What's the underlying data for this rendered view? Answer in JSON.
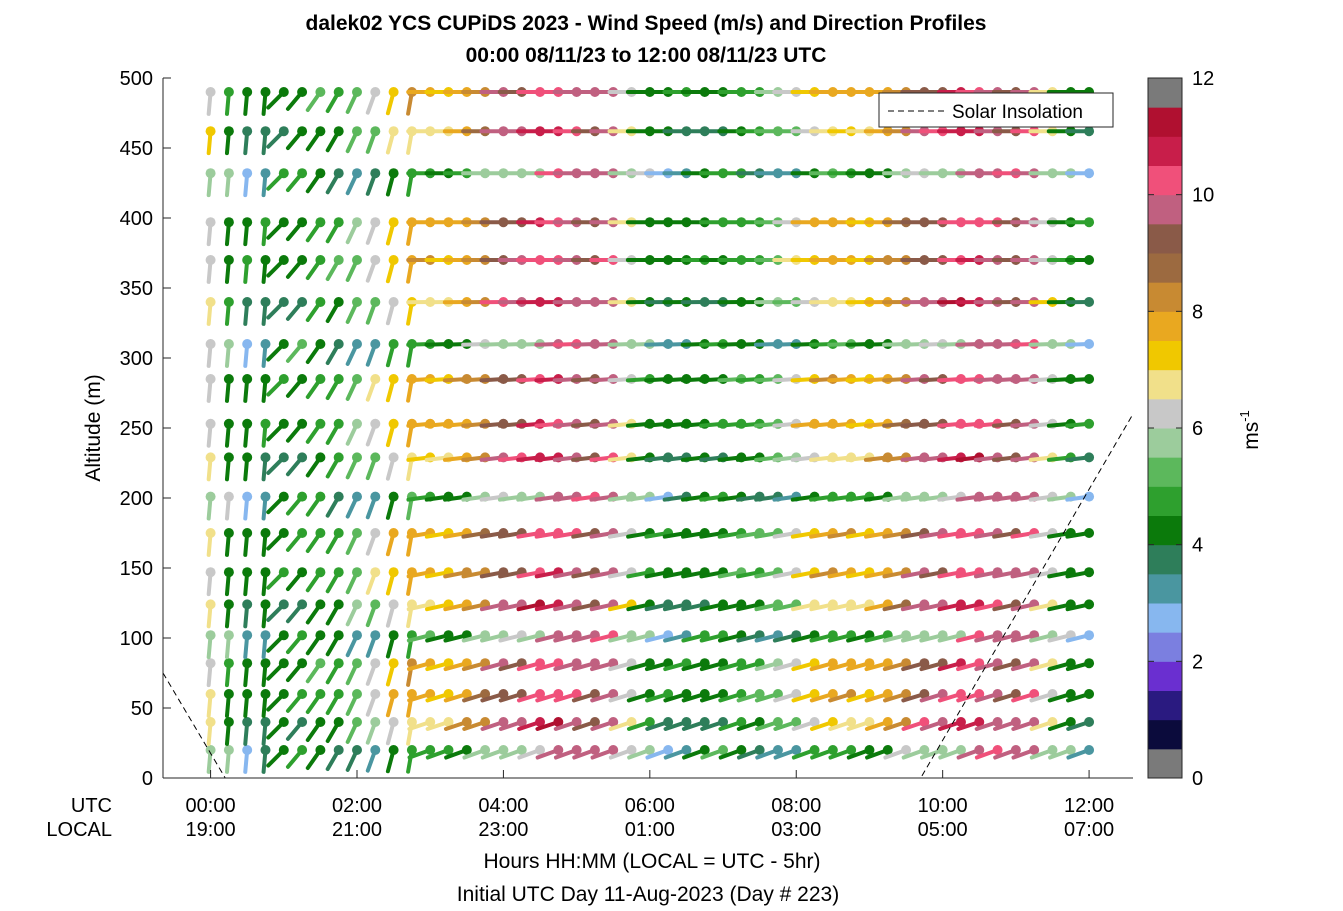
{
  "chart_data": {
    "type": "wind-barb-profile",
    "title_line1": "dalek02 YCS CUPiDS 2023 - Wind Speed (m/s) and Direction Profiles",
    "title_line2": "00:00 08/11/23 to 12:00 08/11/23  UTC",
    "ylabel": "Altitude (m)",
    "xlabel": "Hours HH:MM  (LOCAL = UTC - 5hr)",
    "subtitle": "Initial UTC Day 11-Aug-2023 (Day # 223)",
    "row_label_utc": "UTC",
    "row_label_local": "LOCAL",
    "x_ticks_utc": [
      "00:00",
      "02:00",
      "04:00",
      "06:00",
      "08:00",
      "10:00",
      "12:00"
    ],
    "x_ticks_local": [
      "19:00",
      "21:00",
      "23:00",
      "01:00",
      "03:00",
      "05:00",
      "07:00"
    ],
    "x_tick_hours": [
      0,
      2,
      4,
      6,
      8,
      10,
      12
    ],
    "xlim_hours": [
      -0.65,
      12.6
    ],
    "y_ticks": [
      "0",
      "50",
      "100",
      "150",
      "200",
      "250",
      "300",
      "350",
      "400",
      "450",
      "500"
    ],
    "ylim": [
      0,
      500
    ],
    "colorbar": {
      "label": "ms",
      "label_exponent": "-1",
      "ticks": [
        "0",
        "2",
        "4",
        "6",
        "8",
        "10",
        "12"
      ],
      "range": [
        0,
        12
      ],
      "colors": [
        "#7a7a7a",
        "#0b0b3c",
        "#2a1a80",
        "#6a2fd0",
        "#7b7fe0",
        "#87b7ef",
        "#4a96a0",
        "#2e7e5a",
        "#0b7a0b",
        "#2ea02e",
        "#5cb85c",
        "#9ccc9c",
        "#c8c8c8",
        "#f1e08a",
        "#f0c800",
        "#e9a820",
        "#c88a32",
        "#9c6a40",
        "#8a5a48",
        "#c06080",
        "#f0507a",
        "#c81e4a",
        "#b01030",
        "#7a7a7a"
      ]
    },
    "legend": {
      "entry": "Solar Insolation",
      "placement": "top-right"
    },
    "altitudes_m": [
      20,
      40,
      60,
      82,
      102,
      124,
      147,
      175,
      201,
      229,
      253,
      285,
      310,
      340,
      370,
      397,
      432,
      462,
      490
    ],
    "time_step_hours": 0.25,
    "time_start_hours": 0,
    "profiles_speed_ms": [
      [
        5.5,
        5.5,
        2.5,
        3,
        4,
        4.5,
        4,
        3.5,
        3,
        3,
        4,
        4.5,
        4.5,
        4,
        4,
        5.5,
        5.5,
        5.5,
        5.5,
        9.5,
        9.5,
        9.5,
        9.5
      ],
      [
        6.5,
        4,
        3.5,
        3.5,
        3.5,
        3.5,
        4,
        4,
        5,
        5,
        6,
        6.5,
        6.5,
        6.5,
        7.5,
        8,
        9.5,
        9.5,
        10.5,
        10.5,
        9.5,
        9,
        9.5
      ],
      [
        6,
        4,
        4,
        4,
        4,
        4,
        4.5,
        4.5,
        5,
        6,
        7,
        7.5,
        7.5,
        7,
        7.5,
        8,
        9,
        9,
        10,
        10,
        9.5,
        9,
        9.5
      ],
      [
        6,
        4,
        4,
        4,
        4,
        4,
        4.5,
        4.5,
        5,
        6,
        7,
        7.5,
        7.5,
        7,
        7.5,
        8,
        9,
        9,
        10,
        10,
        9.5,
        9,
        9.5
      ]
    ],
    "solar_insolation_curve": [
      [
        -0.65,
        75
      ],
      [
        0.2,
        0
      ],
      [
        9.7,
        0
      ],
      [
        12.6,
        260
      ]
    ]
  }
}
